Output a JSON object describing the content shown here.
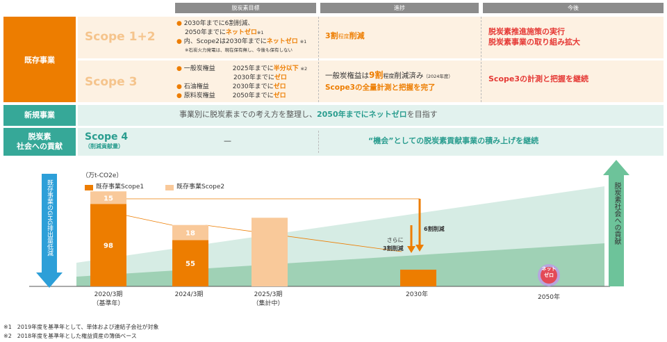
{
  "table": {
    "headers": [
      "脱炭素目標",
      "進捗",
      "今後"
    ],
    "rows": {
      "existing": {
        "label": "既存事業",
        "scope12": {
          "label": "Scope 1+2",
          "goal_line1": "2030年までに6割削減、",
          "goal_line2_a": "2050年までに",
          "goal_line2_b": "ネットゼロ",
          "goal_line2_c": "※1",
          "goal_line3_a": "内、Scope2は2030年までに",
          "goal_line3_b": "ネットゼロ",
          "goal_line3_c": "※1",
          "goal_note": "※石炭火力発電は、現在保有無し、今後も保有しない",
          "progress_a": "3割",
          "progress_b": "程度",
          "progress_c": "削減",
          "future_line1": "脱炭素推進施策の実行",
          "future_line2": "脱炭素事業の取り組み拡大"
        },
        "scope3": {
          "label": "Scope 3",
          "r1_a": "一般炭権益",
          "r1_b": "2025年までに",
          "r1_c": "半分以下",
          "r1_d": "※2",
          "r1b_a": "2030年までに",
          "r1b_b": "ゼロ",
          "r2_a": "石油権益",
          "r2_b": "2030年までに",
          "r2_c": "ゼロ",
          "r3_a": "原料炭権益",
          "r3_b": "2050年までに",
          "r3_c": "ゼロ",
          "progress1_a": "一般炭権益は",
          "progress1_b": "9割",
          "progress1_c": "程度",
          "progress1_d": "削減済み",
          "progress1_e": "（2024年度）",
          "progress2": "Scope3の全量計測と把握を完了",
          "future": "Scope3の計測と把握を継続"
        }
      },
      "new": {
        "label": "新規事業",
        "text_a": "事業別に脱炭素までの考え方を整理し、",
        "text_b": "2050年までにネットゼロ",
        "text_c": "を目指す"
      },
      "contribution": {
        "label_line1": "脱炭素",
        "label_line2": "社会への貢献",
        "scope4": "Scope 4",
        "scope4_sub": "（削減貢献量）",
        "goal": "—",
        "future": "“機会”としての脱炭素貢献事業の積み上げを継続"
      }
    }
  },
  "chart_data": {
    "type": "bar",
    "unit": "（万t-CO2e）",
    "categories": [
      "2020/3期",
      "2024/3期",
      "2025/3期",
      "2030年",
      "2050年"
    ],
    "category_sublabels": [
      "（基準年）",
      "",
      "（集計中）",
      "",
      ""
    ],
    "series": [
      {
        "name": "既存事業Scope1",
        "values": [
          98,
          55,
          null,
          null,
          null
        ],
        "color": "#ed7d00"
      },
      {
        "name": "既存事業Scope2",
        "values": [
          15,
          18,
          null,
          null,
          null
        ],
        "color": "#f9c99a"
      }
    ],
    "pending_bar_color": "#f9c99a",
    "target_2030_color": "#ed7d00",
    "ylim": [
      0,
      120
    ],
    "annotations": {
      "further": "さらに",
      "further_cut": "3割削減",
      "six_cut": "6割削減",
      "net_zero": "ネット ゼロ"
    },
    "left_arrow_label": "既存事業のGHG排出量低減",
    "right_arrow_label": "脱炭素社会への貢献",
    "area_colors": [
      "#d6ece4",
      "#9fd1b5"
    ]
  },
  "footnotes": [
    "※1　2019年度を基準年として、単体および連結子会社が対象",
    "※2　2018年度を基準年とした権益資産の簿価ベース"
  ]
}
